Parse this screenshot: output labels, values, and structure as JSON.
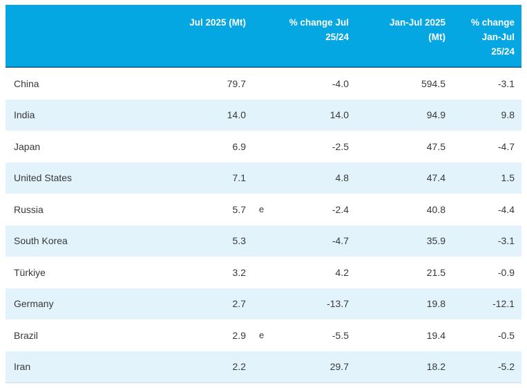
{
  "theme": {
    "header_bg": "#04a7e2",
    "header_text": "#ffffff",
    "header_border": "#1a72a0",
    "row_alt_bg": "#e3f3fb",
    "text": "#383838",
    "bottom_border": "#ccd9e0"
  },
  "table": {
    "header": {
      "country": "",
      "jul": [
        "Jul 2025 (Mt)"
      ],
      "pct_jul": [
        "% change Jul",
        "25/24"
      ],
      "janjul": [
        "Jan-Jul 2025",
        "(Mt)"
      ],
      "pct_janjul": [
        "% change",
        "Jan-Jul",
        "25/24"
      ]
    },
    "rows": [
      {
        "country": "China",
        "jul": "79.7",
        "note": "",
        "pct_jul": "-4.0",
        "janjul": "594.5",
        "pct_janjul": "-3.1"
      },
      {
        "country": "India",
        "jul": "14.0",
        "note": "",
        "pct_jul": "14.0",
        "janjul": "94.9",
        "pct_janjul": "9.8"
      },
      {
        "country": "Japan",
        "jul": "6.9",
        "note": "",
        "pct_jul": "-2.5",
        "janjul": "47.5",
        "pct_janjul": "-4.7"
      },
      {
        "country": "United States",
        "jul": "7.1",
        "note": "",
        "pct_jul": "4.8",
        "janjul": "47.4",
        "pct_janjul": "1.5"
      },
      {
        "country": "Russia",
        "jul": "5.7",
        "note": "e",
        "pct_jul": "-2.4",
        "janjul": "40.8",
        "pct_janjul": "-4.4"
      },
      {
        "country": "South Korea",
        "jul": "5.3",
        "note": "",
        "pct_jul": "-4.7",
        "janjul": "35.9",
        "pct_janjul": "-3.1"
      },
      {
        "country": "Türkiye",
        "jul": "3.2",
        "note": "",
        "pct_jul": "4.2",
        "janjul": "21.5",
        "pct_janjul": "-0.9"
      },
      {
        "country": "Germany",
        "jul": "2.7",
        "note": "",
        "pct_jul": "-13.7",
        "janjul": "19.8",
        "pct_janjul": "-12.1"
      },
      {
        "country": "Brazil",
        "jul": "2.9",
        "note": "e",
        "pct_jul": "-5.5",
        "janjul": "19.4",
        "pct_janjul": "-0.5"
      },
      {
        "country": "Iran",
        "jul": "2.2",
        "note": "",
        "pct_jul": "29.7",
        "janjul": "18.2",
        "pct_janjul": "-5.2"
      }
    ]
  },
  "chart_data": {
    "type": "table",
    "columns": [
      "",
      "Jul 2025 (Mt)",
      "note",
      "% change Jul 25/24",
      "Jan-Jul 2025 (Mt)",
      "% change Jan-Jul 25/24"
    ],
    "rows": [
      [
        "China",
        79.7,
        "",
        -4.0,
        594.5,
        -3.1
      ],
      [
        "India",
        14.0,
        "",
        14.0,
        94.9,
        9.8
      ],
      [
        "Japan",
        6.9,
        "",
        -2.5,
        47.5,
        -4.7
      ],
      [
        "United States",
        7.1,
        "",
        4.8,
        47.4,
        1.5
      ],
      [
        "Russia",
        5.7,
        "e",
        -2.4,
        40.8,
        -4.4
      ],
      [
        "South Korea",
        5.3,
        "",
        -4.7,
        35.9,
        -3.1
      ],
      [
        "Türkiye",
        3.2,
        "",
        4.2,
        21.5,
        -0.9
      ],
      [
        "Germany",
        2.7,
        "",
        -13.7,
        19.8,
        -12.1
      ],
      [
        "Brazil",
        2.9,
        "e",
        -5.5,
        19.4,
        -0.5
      ],
      [
        "Iran",
        2.2,
        "",
        29.7,
        18.2,
        -5.2
      ]
    ],
    "layout": {
      "header_fill": "#04a7e2",
      "alt_row_fill": "#e3f3fb",
      "numeric_alignment": "right",
      "striped": true
    }
  }
}
